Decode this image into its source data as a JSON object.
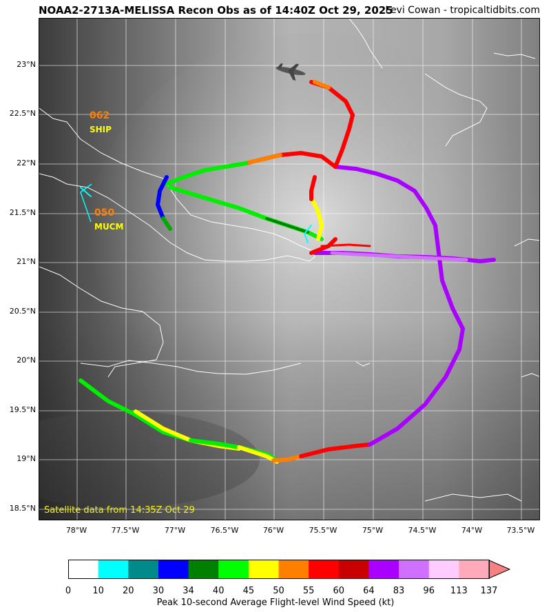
{
  "header": {
    "title": "NOAA2-2713A-MELISSA Recon Obs as of 14:40Z Oct 29, 2025",
    "credit": "Levi Cowan - tropicaltidbits.com"
  },
  "map": {
    "latitude_labels": [
      "23°N",
      "22.5°N",
      "22°N",
      "21.5°N",
      "21°N",
      "20.5°N",
      "20°N",
      "19.5°N",
      "19°N",
      "18.5°N"
    ],
    "longitude_labels": [
      "78°W",
      "77.5°W",
      "77°W",
      "76.5°W",
      "76°W",
      "75.5°W",
      "75°W",
      "74.5°W",
      "74°W",
      "73.5°W"
    ],
    "satellite_caption": "Satellite data from 14:35Z Oct 29",
    "stations": [
      {
        "value": "062",
        "name": "SHIP"
      },
      {
        "value": "050",
        "name": "MUCM"
      }
    ],
    "aircraft_icon": "aircraft-icon"
  },
  "colorbar": {
    "label": "Peak 10-second Average Flight-level Wind Speed (kt)",
    "ticks": [
      "0",
      "10",
      "20",
      "30",
      "34",
      "40",
      "45",
      "50",
      "55",
      "60",
      "64",
      "83",
      "96",
      "113",
      "137"
    ],
    "colors": [
      "#ffffff",
      "#00ffff",
      "#008b8b",
      "#0000ff",
      "#008000",
      "#00ff00",
      "#ffff00",
      "#ff7f00",
      "#ff0000",
      "#c80000",
      "#aa00ff",
      "#d070ff",
      "#ffccff",
      "#ffaabb"
    ],
    "extend_arrow_color": "#f88080"
  }
}
